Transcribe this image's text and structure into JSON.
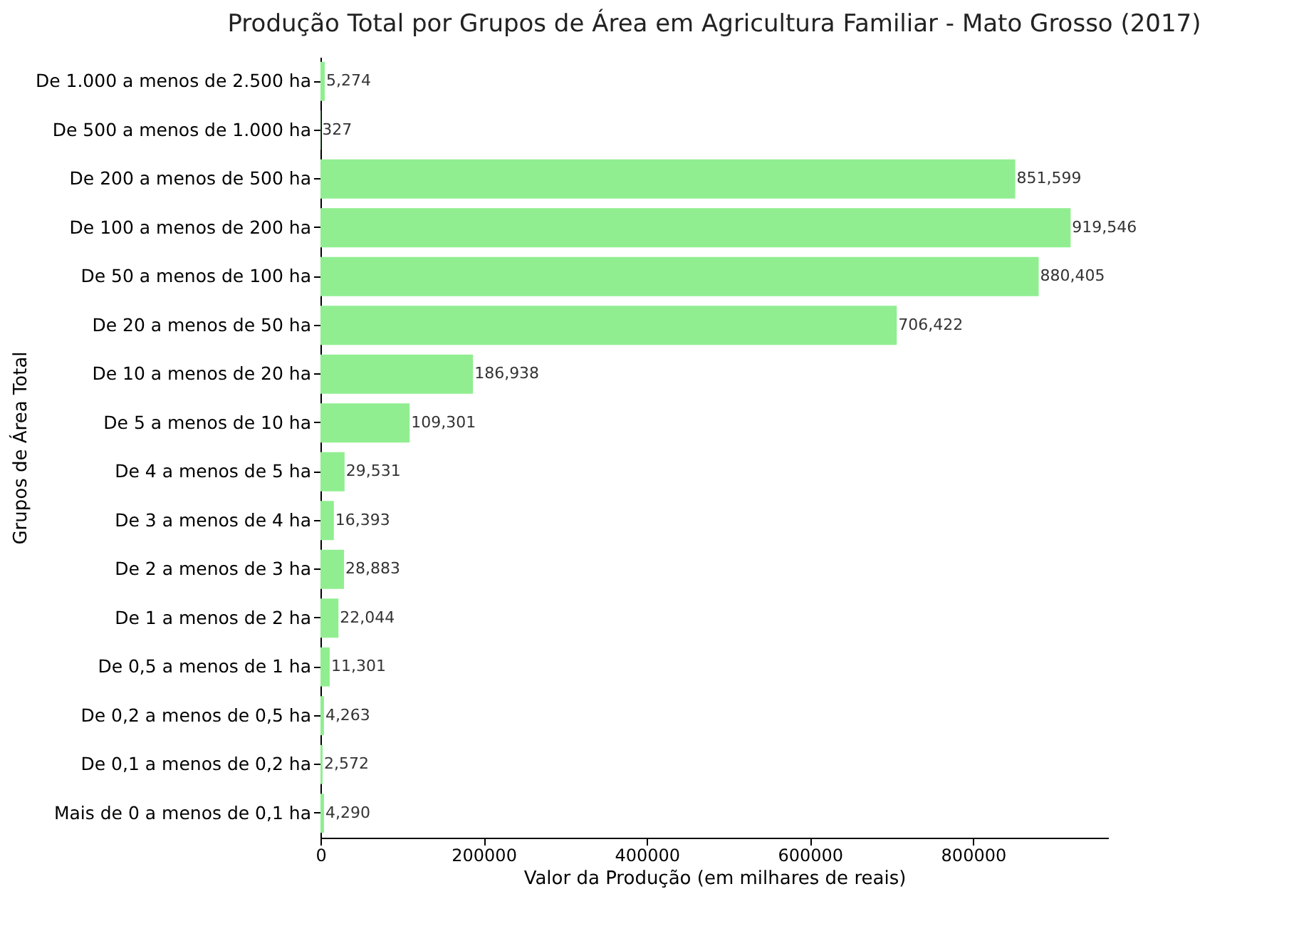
{
  "chart_data": {
    "type": "bar",
    "orientation": "horizontal",
    "title": "Produção Total por Grupos de Área em Agricultura Familiar - Mato Grosso (2017)",
    "xlabel": "Valor da Produção (em milhares de reais)",
    "ylabel": "Grupos de Área Total",
    "categories": [
      "De 1.000 a menos de 2.500 ha",
      "De 500 a menos de 1.000 ha",
      "De 200 a menos de 500 ha",
      "De 100 a menos de 200 ha",
      "De 50 a menos de 100 ha",
      "De 20 a menos de 50 ha",
      "De 10 a menos de 20 ha",
      "De 5 a menos de 10 ha",
      "De 4 a menos de 5 ha",
      "De 3 a menos de 4 ha",
      "De 2 a menos de 3 ha",
      "De 1 a menos de 2 ha",
      "De 0,5 a menos de 1 ha",
      "De 0,2 a menos de 0,5 ha",
      "De 0,1 a menos de 0,2 ha",
      "Mais de 0 a menos de 0,1 ha"
    ],
    "values": [
      5274,
      327,
      851599,
      919546,
      880405,
      706422,
      186938,
      109301,
      29531,
      16393,
      28883,
      22044,
      11301,
      4263,
      2572,
      4290
    ],
    "value_labels": [
      "5,274",
      "327",
      "851,599",
      "919,546",
      "880,405",
      "706,422",
      "186,938",
      "109,301",
      "29,531",
      "16,393",
      "28,883",
      "22,044",
      "11,301",
      "4,263",
      "2,572",
      "4,290"
    ],
    "color": "#90ee90",
    "xlim": [
      0,
      965500
    ],
    "xticks": [
      0,
      200000,
      400000,
      600000,
      800000
    ],
    "grid": false
  }
}
